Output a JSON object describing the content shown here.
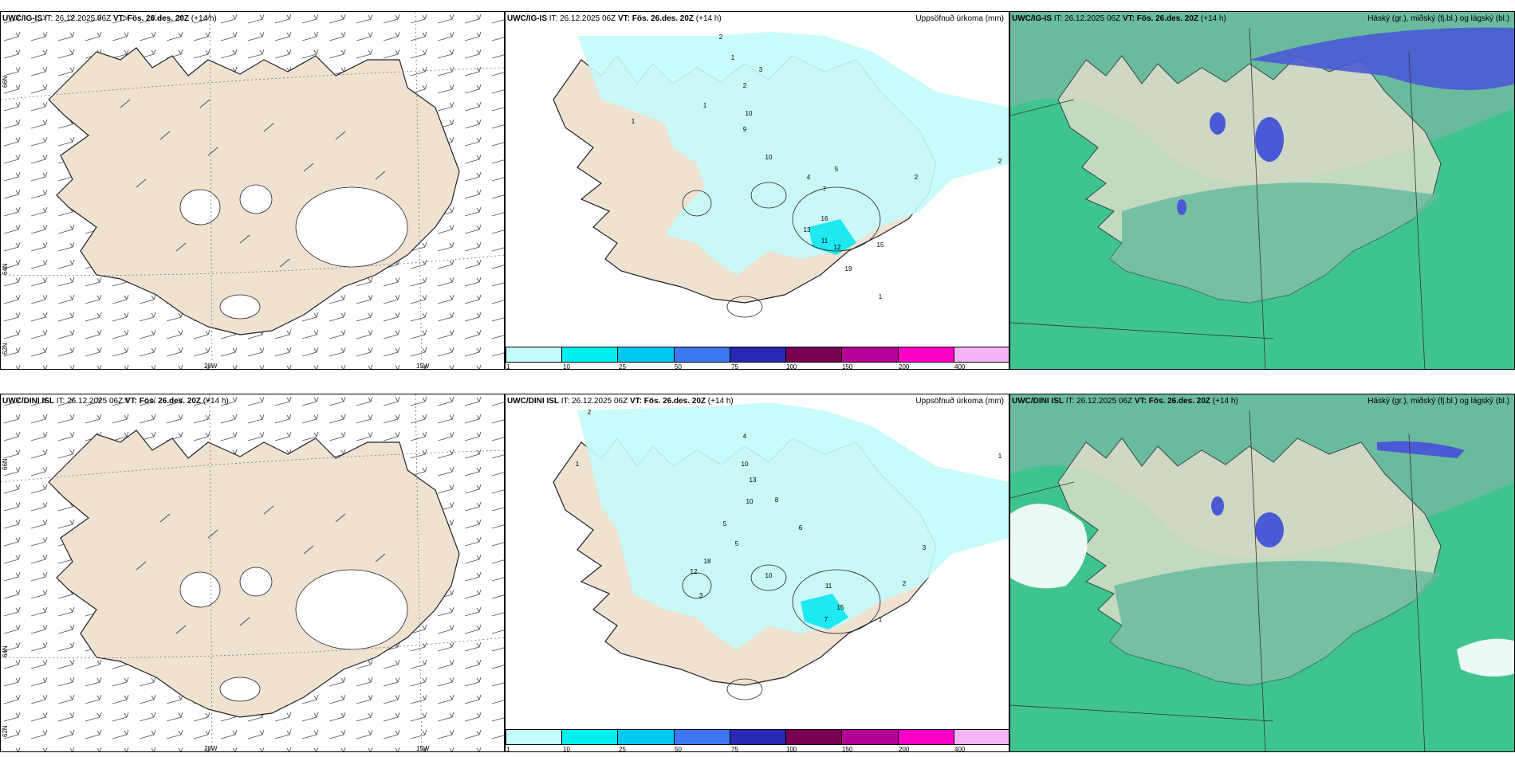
{
  "rows": [
    {
      "model": "UWC/IG-IS",
      "it": "IT: 26.12.2025 06Z",
      "vt_label": "VT:",
      "vt_value": "Fös. 26.des. 20Z",
      "lead": "(+14 h)",
      "wind_title_it": "IT: 26.12.2025 06Z",
      "precip_numbers": [
        "2",
        "1",
        "2",
        "3",
        "1",
        "1",
        "10",
        "9",
        "10",
        "4",
        "7",
        "5",
        "16",
        "13",
        "11",
        "12",
        "19",
        "15",
        "2",
        "1",
        "2"
      ]
    },
    {
      "model": "UWC/DINI ISL",
      "it": "IT: 26.12.2025 06Z",
      "vt_label": "VT:",
      "vt_value": "Fös. 26.des. 20Z",
      "lead": "(+14 h)",
      "wind_title_it": "IT: 26.12.2025 06Z",
      "precip_numbers": [
        "2",
        "1",
        "4",
        "10",
        "13",
        "8",
        "6",
        "5",
        "10",
        "12",
        "18",
        "3",
        "10",
        "11",
        "15",
        "7",
        "1",
        "2",
        "3",
        "1",
        "5"
      ]
    }
  ],
  "precip_title": "Uppsöfnuð úrkoma (mm)",
  "cloud_title": "Háský (gr.), miðský (fj.bl.) og lágský (bl.)",
  "lon_labels": [
    "20W",
    "15W"
  ],
  "lat_labels": [
    "66N",
    "64N",
    "62N"
  ],
  "colorbar": {
    "ticks": [
      "1",
      "10",
      "25",
      "50",
      "75",
      "100",
      "150",
      "200",
      "400"
    ],
    "colors": [
      "#c4fbfb",
      "#00f0f0",
      "#00c8f0",
      "#3c78f0",
      "#2828b4",
      "#780050",
      "#b40096",
      "#ff00c8",
      "#f5b4f5"
    ]
  },
  "colors": {
    "land": "#f0e2d1",
    "precip_light": "#c4fbfb",
    "cloud_low": "#6aba9e",
    "cloud_mid": "#2ec98a",
    "cloud_high": "#4a5ad4"
  }
}
